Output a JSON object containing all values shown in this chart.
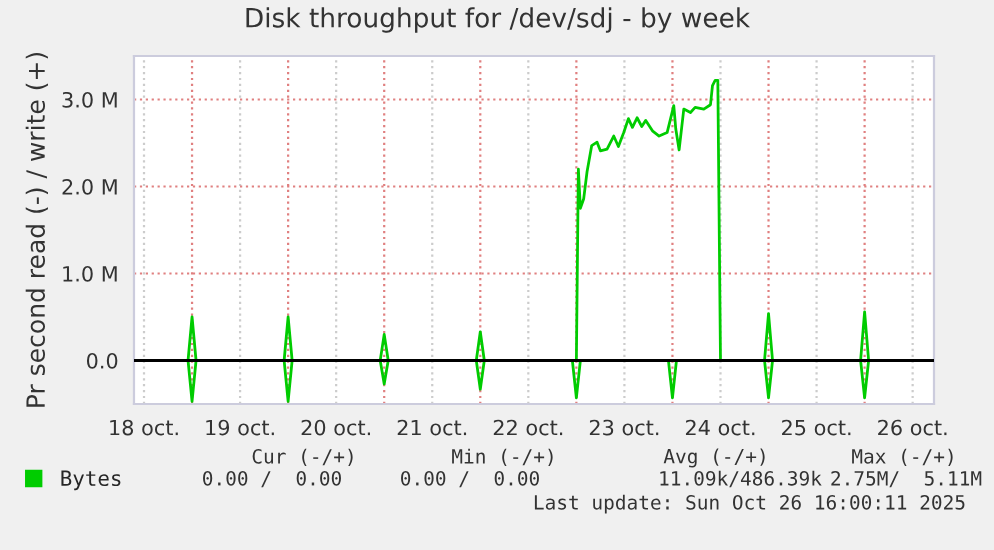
{
  "chart_data": {
    "type": "line",
    "title": "Disk throughput for /dev/sdj - by week",
    "ylabel": "Pr second read (-) / write (+)",
    "series": [
      {
        "name": "Bytes",
        "color": "#00cc00",
        "x": [
          "2025-10-18T10:00",
          "2025-10-18T23:00",
          "2025-10-19T00:00",
          "2025-10-19T01:00",
          "2025-10-19T23:00",
          "2025-10-20T00:00",
          "2025-10-20T01:00",
          "2025-10-20T23:00",
          "2025-10-21T00:00",
          "2025-10-21T01:00",
          "2025-10-21T23:00",
          "2025-10-22T00:00",
          "2025-10-22T01:00",
          "2025-10-22T23:30",
          "2025-10-23T00:00",
          "2025-10-23T00:30",
          "2025-10-23T01:00",
          "2025-10-23T01:50",
          "2025-10-23T02:40",
          "2025-10-23T03:50",
          "2025-10-23T05:10",
          "2025-10-23T06:00",
          "2025-10-23T07:40",
          "2025-10-23T09:20",
          "2025-10-23T10:30",
          "2025-10-23T11:50",
          "2025-10-23T13:00",
          "2025-10-23T14:00",
          "2025-10-23T15:10",
          "2025-10-23T16:20",
          "2025-10-23T17:20",
          "2025-10-23T19:00",
          "2025-10-23T20:40",
          "2025-10-23T22:40",
          "2025-10-24T00:20",
          "2025-10-24T00:50",
          "2025-10-24T01:40",
          "2025-10-24T02:50",
          "2025-10-24T04:30",
          "2025-10-24T05:40",
          "2025-10-24T07:50",
          "2025-10-24T09:30",
          "2025-10-24T10:00",
          "2025-10-24T10:40",
          "2025-10-24T11:20",
          "2025-10-24T12:00",
          "2025-10-24T23:00",
          "2025-10-25T00:00",
          "2025-10-25T01:00",
          "2025-10-25T23:00",
          "2025-10-26T00:00",
          "2025-10-26T01:00",
          "2025-10-26T16:00"
        ],
        "values": [
          0,
          0,
          0.5,
          0,
          0,
          0.5,
          0,
          0,
          0.3,
          0,
          0,
          0.33,
          0,
          0,
          0,
          2.2,
          1.75,
          1.86,
          2.17,
          2.47,
          2.51,
          2.41,
          2.43,
          2.58,
          2.46,
          2.62,
          2.78,
          2.68,
          2.79,
          2.69,
          2.76,
          2.64,
          2.58,
          2.62,
          2.93,
          2.66,
          2.42,
          2.89,
          2.85,
          2.91,
          2.89,
          2.94,
          3.16,
          3.22,
          3.22,
          0,
          0,
          0.54,
          0,
          0,
          0.56,
          0,
          0
        ]
      },
      {
        "color": "#00cc00",
        "x": [
          "2025-10-18T10:00",
          "2025-10-18T23:00",
          "2025-10-19T00:00",
          "2025-10-19T01:00",
          "2025-10-19T23:00",
          "2025-10-20T00:00",
          "2025-10-20T01:00",
          "2025-10-20T23:00",
          "2025-10-21T00:00",
          "2025-10-21T01:00",
          "2025-10-21T23:00",
          "2025-10-22T00:00",
          "2025-10-22T01:00",
          "2025-10-22T23:00",
          "2025-10-23T00:00",
          "2025-10-23T01:00",
          "2025-10-23T23:00",
          "2025-10-24T00:00",
          "2025-10-24T01:00",
          "2025-10-24T23:00",
          "2025-10-25T00:00",
          "2025-10-25T01:00",
          "2025-10-25T23:00",
          "2025-10-26T00:00",
          "2025-10-26T01:00",
          "2025-10-26T16:00"
        ],
        "values": [
          0,
          0,
          -0.47,
          0,
          0,
          -0.47,
          0,
          0,
          -0.27,
          0,
          0,
          -0.33,
          0,
          0,
          -0.43,
          0,
          0,
          -0.43,
          0,
          0,
          -0.43,
          0,
          0,
          -0.43,
          0,
          0
        ]
      }
    ],
    "xlim": [
      "2025-10-18T09:30",
      "2025-10-26T17:20"
    ],
    "xticks": [
      {
        "value": "2025-10-18T12:00",
        "label": "18 oct."
      },
      {
        "value": "2025-10-19T12:00",
        "label": "19 oct."
      },
      {
        "value": "2025-10-20T12:00",
        "label": "20 oct."
      },
      {
        "value": "2025-10-21T12:00",
        "label": "21 oct."
      },
      {
        "value": "2025-10-22T12:00",
        "label": "22 oct."
      },
      {
        "value": "2025-10-23T12:00",
        "label": "23 oct."
      },
      {
        "value": "2025-10-24T12:00",
        "label": "24 oct."
      },
      {
        "value": "2025-10-25T12:00",
        "label": "25 oct."
      },
      {
        "value": "2025-10-26T12:00",
        "label": "26 oct."
      },
      {
        "value": "2025-10-19T00:00",
        "label": null
      },
      {
        "value": "2025-10-20T00:00",
        "label": null
      },
      {
        "value": "2025-10-21T00:00",
        "label": null
      },
      {
        "value": "2025-10-22T00:00",
        "label": null
      },
      {
        "value": "2025-10-23T00:00",
        "label": null
      },
      {
        "value": "2025-10-24T00:00",
        "label": null
      },
      {
        "value": "2025-10-25T00:00",
        "label": null
      },
      {
        "value": "2025-10-26T00:00",
        "label": null
      }
    ],
    "ylim": [
      -0.5,
      3.5
    ],
    "yticks": [
      {
        "value": 0,
        "label": "0.0"
      },
      {
        "value": 1,
        "label": "1.0 M"
      },
      {
        "value": 2,
        "label": "2.0 M"
      },
      {
        "value": 3,
        "label": "3.0 M"
      }
    ],
    "ref_lines": [
      {
        "axis": "y",
        "value": 0,
        "color": "#000000"
      }
    ],
    "grid": true,
    "legend": "bottom",
    "annotations": [
      "Cur (-/+)",
      "Min (-/+)",
      "Avg (-/+)",
      "Max (-/+)",
      "0.00 /  0.00",
      "0.00 /  0.00",
      "11.09k/486.39k",
      "2.75M/  5.11M",
      "Last update: Sun Oct 26 16:00:11 2025"
    ]
  }
}
